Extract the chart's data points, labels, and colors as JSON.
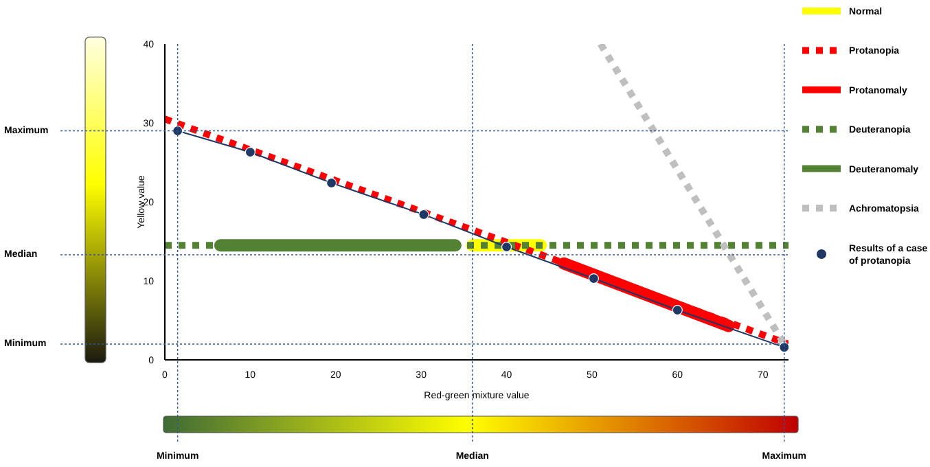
{
  "chart_data": {
    "type": "line",
    "xlabel": "Red-green mixture value",
    "ylabel": "Yellow value",
    "xlim": [
      0,
      73
    ],
    "ylim": [
      0,
      40
    ],
    "xticks": [
      0,
      10,
      20,
      30,
      40,
      50,
      60,
      70
    ],
    "yticks": [
      0,
      10,
      20,
      30,
      40
    ],
    "grid": false,
    "legend": "top right",
    "series": [
      {
        "name": "Normal",
        "color": "#ffff00",
        "line_style": "solid",
        "marker": "none",
        "x": [
          36,
          44
        ],
        "values": [
          14.5,
          14.5
        ]
      },
      {
        "name": "Protanopia",
        "color": "#ff0000",
        "line_style": "dotted",
        "marker": "none",
        "x": [
          0,
          73
        ],
        "values": [
          30.5,
          2
        ]
      },
      {
        "name": "Protanomaly",
        "color": "#ff0000",
        "line_style": "solid",
        "marker": "none",
        "x": [
          46.7,
          66
        ],
        "values": [
          12.2,
          4.3
        ]
      },
      {
        "name": "Deuteranopia",
        "color": "#548235",
        "line_style": "dotted",
        "marker": "none",
        "x": [
          0,
          73
        ],
        "values": [
          14.5,
          14.5
        ]
      },
      {
        "name": "Deuteranomaly",
        "color": "#548235",
        "line_style": "solid",
        "marker": "none",
        "x": [
          6.5,
          34
        ],
        "values": [
          14.5,
          14.5
        ]
      },
      {
        "name": "Achromatopsia",
        "color": "#bfbfbf",
        "line_style": "dotted",
        "marker": "none",
        "x": [
          51,
          72.5
        ],
        "values": [
          40,
          2
        ]
      },
      {
        "name": "Results of a case of protanopia",
        "color": "#1f3864",
        "line_style": "solid",
        "marker": "circle",
        "x": [
          1.5,
          10,
          19.5,
          30.3,
          40,
          50.2,
          60,
          72.5
        ],
        "values": [
          29,
          26.3,
          22.4,
          18.4,
          14.3,
          10.3,
          6.3,
          1.6
        ]
      }
    ],
    "ref_lines": [
      {
        "axis": "y",
        "value": 29,
        "label": "Maximum",
        "color": "#2f5597",
        "line_style": "dotted"
      },
      {
        "axis": "y",
        "value": 13.3,
        "label": "Median",
        "color": "#2f5597",
        "line_style": "dotted"
      },
      {
        "axis": "y",
        "value": 2,
        "label": "Minimum",
        "color": "#2f5597",
        "line_style": "dotted"
      },
      {
        "axis": "x",
        "value": 1.5,
        "label": "Minimum",
        "color": "#2f5597",
        "line_style": "dotted"
      },
      {
        "axis": "x",
        "value": 36,
        "label": "Median",
        "color": "#2f5597",
        "line_style": "dotted"
      },
      {
        "axis": "x",
        "value": 72.5,
        "label": "Maximum",
        "color": "#2f5597",
        "line_style": "dotted"
      }
    ]
  }
}
